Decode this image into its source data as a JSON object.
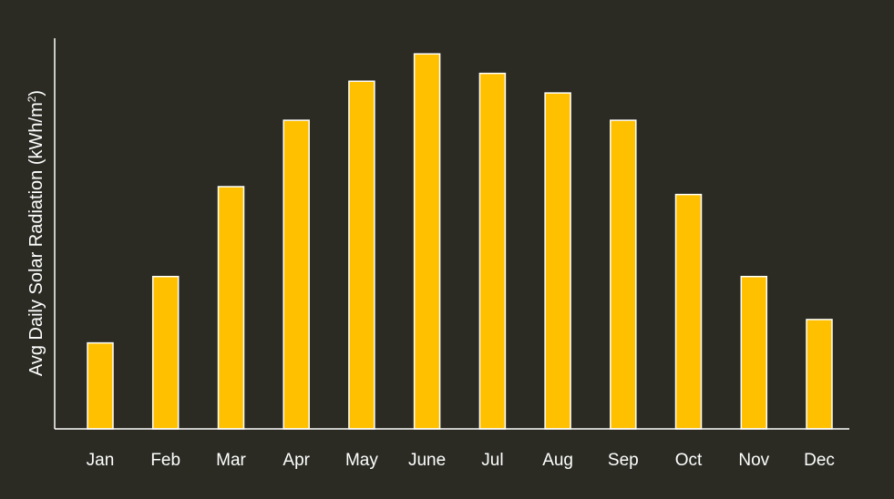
{
  "colors": {
    "background": "#2b2b24",
    "bar_fill": "#ffc000",
    "bar_stroke": "#ffffff",
    "axis": "#ffffff",
    "text": "#ffffff"
  },
  "chart_data": {
    "type": "bar",
    "title": "",
    "xlabel": "",
    "ylabel_main": "Avg Daily Solar Radiation (kWh/m",
    "ylabel_sup": "2",
    "ylabel_end": ")",
    "categories": [
      "Jan",
      "Feb",
      "Mar",
      "Apr",
      "May",
      "June",
      "Jul",
      "Aug",
      "Sep",
      "Oct",
      "Nov",
      "Dec"
    ],
    "values": [
      2.2,
      3.9,
      6.2,
      7.9,
      8.9,
      9.6,
      9.1,
      8.6,
      7.9,
      6.0,
      3.9,
      2.8
    ],
    "ylim": [
      0,
      10
    ],
    "grid": false,
    "legend": "none"
  }
}
